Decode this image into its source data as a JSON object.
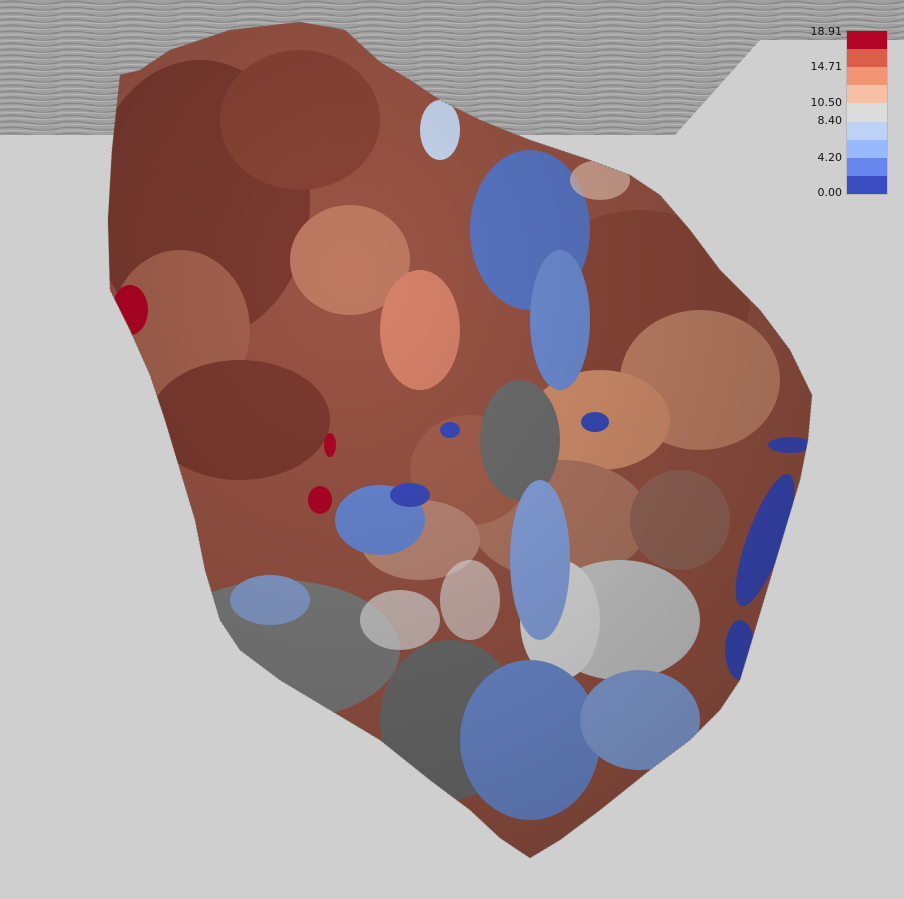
{
  "legend": {
    "labels": [
      "18.91",
      "14.71",
      "10.50",
      "8.40",
      "4.20",
      "0.00"
    ],
    "colors": [
      "#b40426",
      "#dc5d4a",
      "#f39475",
      "#f6bfa6",
      "#dddcdc",
      "#bcd2f7",
      "#98b9ff",
      "#6688ee",
      "#3b4cc0"
    ]
  },
  "colors": {
    "background": "#cfcfcf",
    "seismic_slice": "#9a9a9a",
    "surface_warm": "#a0523e",
    "surface_cool": "#6a8fd8"
  }
}
